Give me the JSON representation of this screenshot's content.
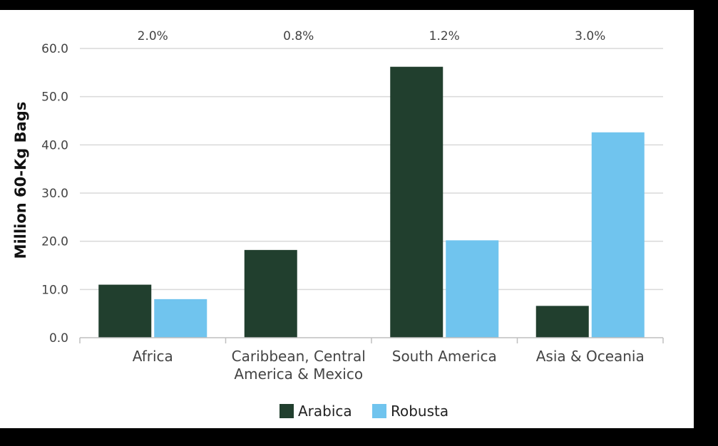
{
  "chart_data": {
    "type": "bar",
    "categories": [
      "Africa",
      "Caribbean, Central America & Mexico",
      "South America",
      "Asia & Oceania"
    ],
    "category_lines": [
      [
        "Africa"
      ],
      [
        "Caribbean, Central",
        "America & Mexico"
      ],
      [
        "South America"
      ],
      [
        "Asia & Oceania"
      ]
    ],
    "growth_labels": [
      "2.0%",
      "0.8%",
      "1.2%",
      "3.0%"
    ],
    "series": [
      {
        "name": "Arabica",
        "color": "#213F2E",
        "values": [
          11.0,
          18.2,
          56.2,
          6.6
        ]
      },
      {
        "name": "Robusta",
        "color": "#70C4EE",
        "values": [
          8.0,
          null,
          20.2,
          42.6
        ]
      }
    ],
    "ylabel": "Million 60-Kg Bags",
    "ylim": [
      0,
      60
    ],
    "yticks": [
      "0.0",
      "10.0",
      "20.0",
      "30.0",
      "40.0",
      "50.0",
      "60.0"
    ],
    "grid": true,
    "legend_position": "bottom"
  }
}
